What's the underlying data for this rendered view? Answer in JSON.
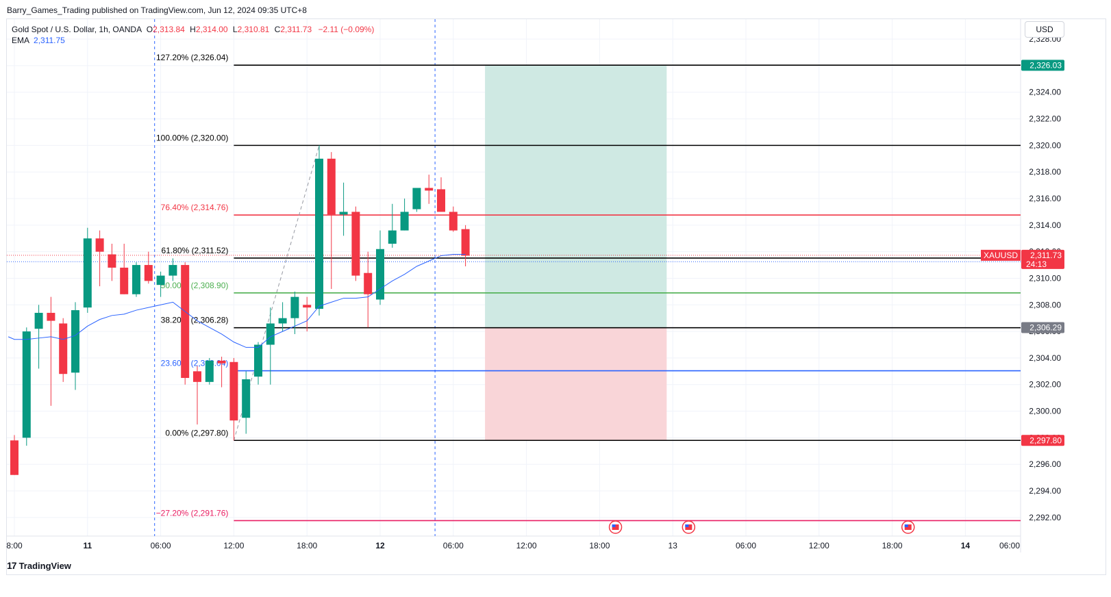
{
  "header": {
    "publisher": "Barry_Games_Trading published on TradingView.com, Jun 12, 2024 09:35 UTC+8"
  },
  "legend": {
    "symbol": "Gold Spot / U.S. Dollar, 1h, OANDA",
    "open_label": "O",
    "open": "2,313.84",
    "high_label": "H",
    "high": "2,314.00",
    "low_label": "L",
    "low": "2,310.81",
    "close_label": "C",
    "close": "2,311.73",
    "change": "−2.11 (−0.09%)",
    "ema_label": "EMA",
    "ema_value": "2,311.75"
  },
  "currency": "USD",
  "brand": {
    "logo": "17",
    "name": "TradingView"
  },
  "colors": {
    "up": "#089981",
    "down": "#f23645",
    "ema": "#2962ff",
    "fib_black": "#000000",
    "fib_red": "#f23645",
    "fib_green": "#4caf50",
    "fib_blue": "#2962ff",
    "fib_magenta": "#e91e63",
    "profit_zone": "#cfe9e3",
    "loss_zone": "#f9d5d8",
    "target_badge": "#089981",
    "entry_badge": "#787b86",
    "stop_badge": "#f23645"
  },
  "chart_data": {
    "type": "candlestick",
    "symbol": "XAUUSD",
    "timeframe": "1h",
    "ylim": [
      2290.6,
      2329.5
    ],
    "y_ticks": [
      "2,328.00",
      "2,326.00",
      "2,324.00",
      "2,322.00",
      "2,320.00",
      "2,318.00",
      "2,316.00",
      "2,314.00",
      "2,312.00",
      "2,310.00",
      "2,308.00",
      "2,306.00",
      "2,304.00",
      "2,302.00",
      "2,300.00",
      "2,298.00",
      "2,296.00",
      "2,294.00",
      "2,292.00"
    ],
    "x_ticks": [
      {
        "label": "8:00",
        "bar": 0,
        "bold": false
      },
      {
        "label": "11",
        "bar": 6,
        "bold": true
      },
      {
        "label": "06:00",
        "bar": 12,
        "bold": false
      },
      {
        "label": "12:00",
        "bar": 18,
        "bold": false
      },
      {
        "label": "18:00",
        "bar": 24,
        "bold": false
      },
      {
        "label": "12",
        "bar": 30,
        "bold": true
      },
      {
        "label": "06:00",
        "bar": 36,
        "bold": false
      },
      {
        "label": "12:00",
        "bar": 42,
        "bold": false
      },
      {
        "label": "18:00",
        "bar": 48,
        "bold": false
      },
      {
        "label": "13",
        "bar": 54,
        "bold": false
      },
      {
        "label": "06:00",
        "bar": 60,
        "bold": false
      },
      {
        "label": "12:00",
        "bar": 66,
        "bold": false
      },
      {
        "label": "18:00",
        "bar": 72,
        "bold": false
      },
      {
        "label": "14",
        "bar": 78,
        "bold": true
      },
      {
        "label": "06:00",
        "bar": 84,
        "bold": false
      }
    ],
    "candles": [
      [
        2297.8,
        2298.2,
        2295.2,
        2295.2
      ],
      [
        2298.0,
        2306.3,
        2297.4,
        2306.0
      ],
      [
        2306.2,
        2308.0,
        2303.2,
        2307.4
      ],
      [
        2307.4,
        2308.6,
        2300.4,
        2306.8
      ],
      [
        2306.6,
        2307.0,
        2302.2,
        2302.8
      ],
      [
        2302.9,
        2308.2,
        2301.6,
        2307.6
      ],
      [
        2307.8,
        2313.8,
        2307.4,
        2313.0
      ],
      [
        2313.0,
        2313.6,
        2309.4,
        2312.0
      ],
      [
        2311.8,
        2312.6,
        2309.8,
        2310.8
      ],
      [
        2310.8,
        2312.6,
        2308.8,
        2308.8
      ],
      [
        2308.8,
        2311.2,
        2308.6,
        2311.0
      ],
      [
        2311.0,
        2312.0,
        2309.6,
        2309.8
      ],
      [
        2309.5,
        2310.5,
        2308.6,
        2310.2
      ],
      [
        2310.2,
        2311.5,
        2309.8,
        2311.0
      ],
      [
        2311.0,
        2311.2,
        2302.0,
        2302.5
      ],
      [
        2303.0,
        2303.4,
        2299.0,
        2302.2
      ],
      [
        2302.2,
        2304.0,
        2302.0,
        2303.8
      ],
      [
        2303.8,
        2304.1,
        2301.8,
        2303.6
      ],
      [
        2303.7,
        2304.0,
        2297.8,
        2299.3
      ],
      [
        2299.5,
        2303.0,
        2298.3,
        2302.4
      ],
      [
        2302.6,
        2305.2,
        2302.0,
        2305.0
      ],
      [
        2305.0,
        2307.8,
        2302.0,
        2306.6
      ],
      [
        2306.6,
        2308.2,
        2306.0,
        2307.0
      ],
      [
        2307.0,
        2309.0,
        2305.8,
        2308.6
      ],
      [
        2308.0,
        2308.6,
        2306.0,
        2307.8
      ],
      [
        2307.7,
        2320.0,
        2307.2,
        2319.0
      ],
      [
        2319.0,
        2319.5,
        2309.2,
        2314.8
      ],
      [
        2314.8,
        2317.2,
        2313.2,
        2315.0
      ],
      [
        2315.0,
        2315.4,
        2309.8,
        2310.2
      ],
      [
        2310.4,
        2312.0,
        2306.3,
        2308.8
      ],
      [
        2308.4,
        2313.6,
        2308.0,
        2312.2
      ],
      [
        2312.6,
        2315.6,
        2312.3,
        2313.6
      ],
      [
        2313.6,
        2316.0,
        2313.6,
        2315.0
      ],
      [
        2315.2,
        2316.8,
        2315.0,
        2316.8
      ],
      [
        2316.8,
        2317.8,
        2315.6,
        2316.6
      ],
      [
        2316.7,
        2317.6,
        2315.2,
        2315.0
      ],
      [
        2315.0,
        2315.4,
        2313.5,
        2313.6
      ],
      [
        2313.7,
        2314.0,
        2310.9,
        2311.7
      ]
    ],
    "ema": [
      [
        -0.5,
        2305.6
      ],
      [
        0,
        2305.4
      ],
      [
        1,
        2305.4
      ],
      [
        2,
        2305.5
      ],
      [
        3,
        2305.6
      ],
      [
        4,
        2305.4
      ],
      [
        5,
        2305.7
      ],
      [
        6,
        2306.4
      ],
      [
        7,
        2306.9
      ],
      [
        8,
        2307.2
      ],
      [
        9,
        2307.3
      ],
      [
        10,
        2307.6
      ],
      [
        11,
        2307.8
      ],
      [
        12,
        2308.0
      ],
      [
        13,
        2308.2
      ],
      [
        14,
        2307.5
      ],
      [
        15,
        2306.8
      ],
      [
        16,
        2306.3
      ],
      [
        17,
        2305.8
      ],
      [
        18,
        2305.2
      ],
      [
        19,
        2304.8
      ],
      [
        20,
        2304.8
      ],
      [
        21,
        2305.6
      ],
      [
        22,
        2306.0
      ],
      [
        23,
        2306.4
      ],
      [
        24,
        2306.8
      ],
      [
        25,
        2307.9
      ],
      [
        26,
        2308.2
      ],
      [
        27,
        2308.5
      ],
      [
        28,
        2308.5
      ],
      [
        29,
        2308.6
      ],
      [
        30,
        2309.2
      ],
      [
        31,
        2309.8
      ],
      [
        32,
        2310.3
      ],
      [
        33,
        2310.9
      ],
      [
        34,
        2311.3
      ],
      [
        35,
        2311.7
      ],
      [
        36,
        2311.8
      ],
      [
        37,
        2311.8
      ]
    ],
    "fib_levels": [
      {
        "label": "127.20% (2,326.04)",
        "price": 2326.04,
        "color": "#000000"
      },
      {
        "label": "100.00% (2,320.00)",
        "price": 2320.0,
        "color": "#000000"
      },
      {
        "label": "76.40% (2,314.76)",
        "price": 2314.76,
        "color": "#f23645"
      },
      {
        "label": "61.80% (2,311.52)",
        "price": 2311.52,
        "color": "#000000"
      },
      {
        "label": "50.00% (2,308.90)",
        "price": 2308.9,
        "color": "#4caf50"
      },
      {
        "label": "38.20% (2,306.28)",
        "price": 2306.28,
        "color": "#000000"
      },
      {
        "label": "23.60% (2,303.04)",
        "price": 2303.04,
        "color": "#2962ff"
      },
      {
        "label": "0.00% (2,297.80)",
        "price": 2297.8,
        "color": "#000000"
      },
      {
        "label": "−27.20% (2,291.76)",
        "price": 2291.76,
        "color": "#e91e63"
      }
    ],
    "fib_trend": {
      "from": [
        18,
        2297.8
      ],
      "to": [
        25,
        2320.0
      ]
    },
    "position": {
      "entry": 2306.29,
      "target": 2326.03,
      "stop": 2297.8,
      "start_bar": 38.6,
      "end_bar": 53.5
    },
    "session_lines": [
      11.5,
      34.5
    ],
    "events_bars": [
      49.3,
      55.3,
      73.3
    ],
    "price_badges": [
      {
        "text": "2,326.03",
        "price": 2326.03,
        "role": "target"
      },
      {
        "text": "2,306.29",
        "price": 2306.29,
        "role": "entry"
      },
      {
        "text": "2,297.80",
        "price": 2297.8,
        "role": "stop"
      }
    ],
    "last_price": {
      "symbol": "XAUUSD",
      "price": "2,311.73",
      "countdown": "24:13",
      "value": 2311.73
    }
  }
}
